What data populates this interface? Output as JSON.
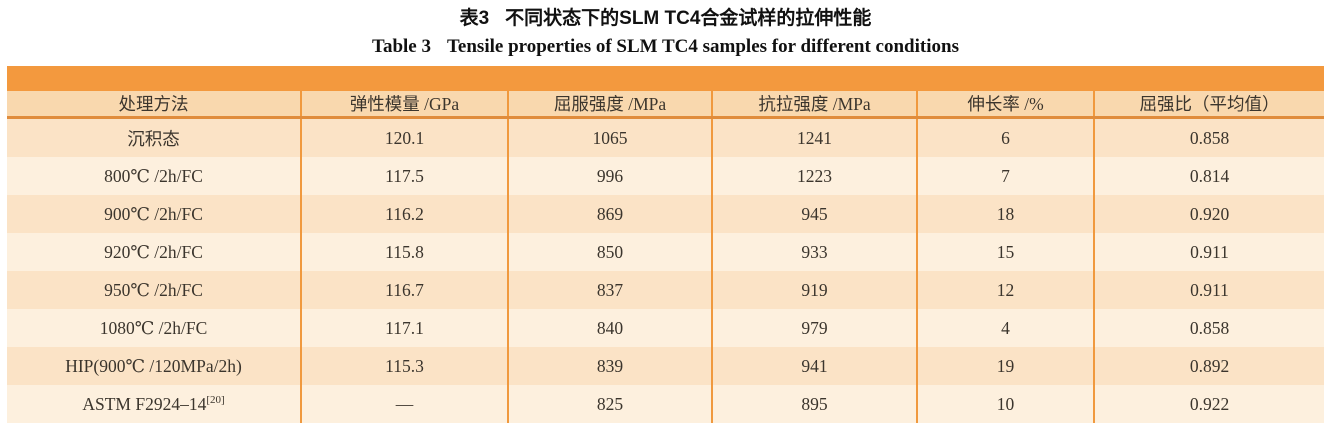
{
  "colors": {
    "band": "#F3993E",
    "header_bg": "#F9D8AE",
    "rule": "#E08C3C",
    "divider": "#F0993E",
    "row_odd": "#FBE3C6",
    "row_even": "#FDF0DE",
    "text": "#3B352D"
  },
  "caption": {
    "zh_label": "表3",
    "zh_text": "不同状态下的SLM TC4合金试样的拉伸性能",
    "en_label": "Table 3",
    "en_text": "Tensile properties of SLM TC4 samples for different conditions"
  },
  "table": {
    "headers": [
      "处理方法",
      "弹性模量 /GPa",
      "屈服强度 /MPa",
      "抗拉强度 /MPa",
      "伸长率 /%",
      "屈强比（平均值）"
    ],
    "rows": [
      {
        "method": "沉积态",
        "sup": "",
        "values": [
          "120.1",
          "1065",
          "1241",
          "6",
          "0.858"
        ]
      },
      {
        "method": "800℃ /2h/FC",
        "sup": "",
        "values": [
          "117.5",
          "996",
          "1223",
          "7",
          "0.814"
        ]
      },
      {
        "method": "900℃ /2h/FC",
        "sup": "",
        "values": [
          "116.2",
          "869",
          "945",
          "18",
          "0.920"
        ]
      },
      {
        "method": "920℃ /2h/FC",
        "sup": "",
        "values": [
          "115.8",
          "850",
          "933",
          "15",
          "0.911"
        ]
      },
      {
        "method": "950℃ /2h/FC",
        "sup": "",
        "values": [
          "116.7",
          "837",
          "919",
          "12",
          "0.911"
        ]
      },
      {
        "method": "1080℃ /2h/FC",
        "sup": "",
        "values": [
          "117.1",
          "840",
          "979",
          "4",
          "0.858"
        ]
      },
      {
        "method": "HIP(900℃ /120MPa/2h)",
        "sup": "",
        "values": [
          "115.3",
          "839",
          "941",
          "19",
          "0.892"
        ]
      },
      {
        "method": "ASTM F2924–14",
        "sup": "[20]",
        "values": [
          "—",
          "825",
          "895",
          "10",
          "0.922"
        ]
      }
    ]
  }
}
